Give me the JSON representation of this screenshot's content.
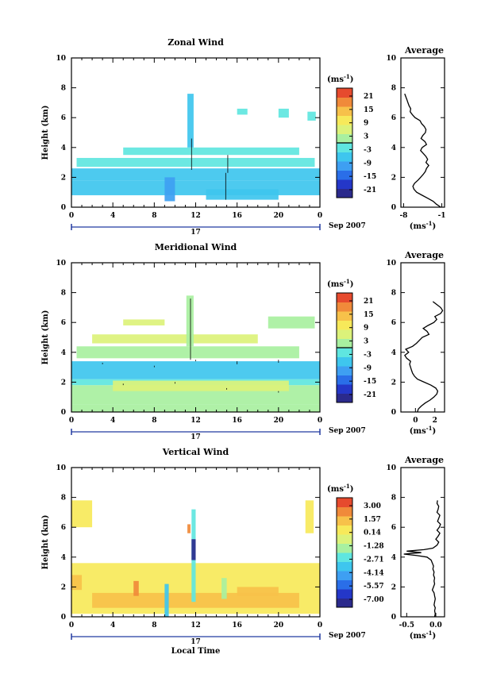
{
  "figure": {
    "x_axis_label": "Local Time",
    "unit_label": "(ms",
    "unit_exp": "-1",
    "unit_close": ")"
  },
  "chart_data": [
    {
      "type": "heatmap",
      "title": "Zonal Wind",
      "ylabel": "Height (km)",
      "xlim": [
        0,
        24
      ],
      "ylim": [
        0,
        10
      ],
      "x_ticks": [
        "0",
        "4",
        "8",
        "12",
        "16",
        "20",
        "0"
      ],
      "y_ticks": [
        "0",
        "2",
        "4",
        "6",
        "8",
        "10"
      ],
      "date_label": "17",
      "date_right_label": "Sep 2007",
      "colorbar": {
        "ticks": [
          "21",
          "15",
          "9",
          "3",
          "-3",
          "-9",
          "-15",
          "-21"
        ],
        "range": [
          -24,
          24
        ],
        "zero_line": 0
      },
      "profile": {
        "title": "Average",
        "xlim": [
          -8.5,
          -0.5
        ],
        "x_ticks": [
          "-8",
          "-1"
        ],
        "x_tick_values": [
          -8,
          -1
        ],
        "xlabel": "(ms",
        "xlabel_exp": "-1",
        "xlabel_close": ")",
        "height": [
          0.0,
          0.2,
          0.4,
          0.6,
          0.8,
          1.0,
          1.2,
          1.4,
          1.6,
          1.8,
          2.0,
          2.2,
          2.4,
          2.6,
          2.8,
          3.0,
          3.2,
          3.4,
          3.6,
          3.8,
          4.0,
          4.2,
          4.4,
          4.6,
          4.8,
          5.0,
          5.2,
          5.4,
          5.6,
          5.8,
          6.0,
          6.2,
          6.4,
          6.6,
          6.8,
          7.0,
          7.2,
          7.4,
          7.6
        ],
        "value": [
          -1.2,
          -2.0,
          -2.6,
          -3.6,
          -4.6,
          -5.6,
          -6.1,
          -6.3,
          -6.0,
          -5.4,
          -4.9,
          -4.4,
          -4.0,
          -3.8,
          -3.4,
          -3.9,
          -3.6,
          -3.9,
          -4.4,
          -4.9,
          -4.6,
          -3.8,
          -4.1,
          -4.8,
          -4.5,
          -4.0,
          -3.9,
          -4.2,
          -4.7,
          -5.0,
          -5.9,
          -6.4,
          -6.8,
          -6.7,
          -7.0,
          -7.2,
          -7.4,
          -7.6,
          -7.8
        ]
      },
      "cells": [
        [
          0,
          24,
          0.8,
          1.8,
          -8
        ],
        [
          0,
          24,
          1.8,
          2.6,
          -6
        ],
        [
          0.5,
          23.5,
          2.7,
          3.3,
          -4
        ],
        [
          5,
          22,
          3.5,
          4.0,
          -4
        ],
        [
          11.2,
          11.8,
          4.0,
          7.6,
          -5
        ],
        [
          20,
          21,
          6.0,
          6.6,
          -4
        ],
        [
          22.8,
          23.6,
          5.8,
          6.4,
          -4
        ],
        [
          16,
          17,
          6.2,
          6.6,
          -4
        ],
        [
          13,
          20,
          0.5,
          1.2,
          -7
        ],
        [
          9,
          10,
          0.4,
          2.0,
          -9
        ]
      ],
      "contours": [
        [
          14.9,
          0.5,
          2.3
        ],
        [
          15.1,
          2.3,
          3.5
        ],
        [
          11.6,
          2.5,
          4.6
        ]
      ]
    },
    {
      "type": "heatmap",
      "title": "Meridional Wind",
      "ylabel": "Height (km)",
      "xlim": [
        0,
        24
      ],
      "ylim": [
        0,
        10
      ],
      "x_ticks": [
        "0",
        "4",
        "8",
        "12",
        "16",
        "20",
        "0"
      ],
      "y_ticks": [
        "0",
        "2",
        "4",
        "6",
        "8",
        "10"
      ],
      "date_label": "17",
      "date_right_label": "Sep 2007",
      "colorbar": {
        "ticks": [
          "21",
          "15",
          "9",
          "3",
          "-3",
          "-9",
          "-15",
          "-21"
        ],
        "range": [
          -24,
          24
        ],
        "zero_line": 0
      },
      "profile": {
        "title": "Average",
        "xlim": [
          -1.5,
          3.0
        ],
        "x_ticks": [
          "0",
          "2"
        ],
        "x_tick_values": [
          0,
          2
        ],
        "xlabel": "(ms",
        "xlabel_exp": "-1",
        "xlabel_close": ")",
        "height": [
          0.0,
          0.2,
          0.4,
          0.6,
          0.8,
          1.0,
          1.2,
          1.4,
          1.6,
          1.8,
          2.0,
          2.2,
          2.4,
          2.6,
          2.8,
          3.0,
          3.2,
          3.4,
          3.6,
          3.8,
          4.0,
          4.2,
          4.4,
          4.6,
          4.8,
          5.0,
          5.2,
          5.4,
          5.6,
          5.8,
          6.0,
          6.2,
          6.4,
          6.6,
          6.8,
          7.0,
          7.2,
          7.4
        ],
        "value": [
          0.2,
          0.3,
          0.6,
          1.0,
          1.5,
          1.9,
          2.2,
          2.3,
          2.1,
          1.6,
          0.9,
          0.2,
          -0.1,
          -0.3,
          -0.4,
          -0.5,
          -0.6,
          -0.5,
          -0.9,
          -1.1,
          -0.7,
          -1.0,
          -0.3,
          0.1,
          0.4,
          0.7,
          1.4,
          1.2,
          0.8,
          1.3,
          1.9,
          2.2,
          2.0,
          2.6,
          2.8,
          2.6,
          2.2,
          1.8
        ]
      },
      "cells": [
        [
          0,
          24,
          0.5,
          1.8,
          1
        ],
        [
          0,
          24,
          1.8,
          2.2,
          -1
        ],
        [
          4,
          21,
          1.4,
          2.1,
          5
        ],
        [
          0,
          24,
          2.2,
          3.4,
          -6
        ],
        [
          0.5,
          22,
          3.6,
          4.4,
          3
        ],
        [
          2,
          18,
          4.6,
          5.2,
          4
        ],
        [
          11.1,
          11.8,
          4.4,
          7.8,
          3
        ],
        [
          19,
          23.5,
          5.6,
          6.4,
          3
        ],
        [
          5,
          9,
          5.8,
          6.2,
          4
        ],
        [
          0,
          24,
          0.0,
          0.5,
          2
        ]
      ],
      "contours": [
        [
          0,
          2.9,
          3.0
        ],
        [
          3,
          3.3,
          3.2
        ],
        [
          8,
          3.1,
          3.0
        ],
        [
          12,
          3.4,
          3.5
        ],
        [
          16,
          3.2,
          3.4
        ],
        [
          20,
          3.5,
          3.3
        ],
        [
          24,
          3.2,
          3.2
        ],
        [
          0,
          1.3,
          1.3
        ],
        [
          5,
          1.8,
          1.9
        ],
        [
          10,
          1.9,
          2.0
        ],
        [
          15,
          1.6,
          1.5
        ],
        [
          20,
          1.3,
          1.4
        ],
        [
          24,
          1.6,
          1.6
        ],
        [
          11.5,
          3.5,
          7.6
        ]
      ]
    },
    {
      "type": "heatmap",
      "title": "Vertical Wind",
      "ylabel": "Height (km)",
      "xlim": [
        0,
        24
      ],
      "ylim": [
        0,
        10
      ],
      "x_ticks": [
        "0",
        "4",
        "8",
        "12",
        "16",
        "20",
        "0"
      ],
      "y_ticks": [
        "0",
        "2",
        "4",
        "6",
        "8",
        "10"
      ],
      "date_label": "17",
      "date_right_label": "Sep 2007",
      "colorbar": {
        "ticks": [
          "3.00",
          "1.57",
          "0.14",
          "-1.28",
          "-2.71",
          "-4.14",
          "-5.57",
          "-7.00"
        ],
        "range": [
          -7.7,
          3.7
        ],
        "zero_line": null
      },
      "profile": {
        "title": "Average",
        "xlim": [
          -0.6,
          0.15
        ],
        "x_ticks": [
          "-0.5",
          "0.0"
        ],
        "x_tick_values": [
          -0.5,
          0.0
        ],
        "xlabel": "(ms",
        "xlabel_exp": "-1",
        "xlabel_close": ")",
        "height": [
          0.0,
          0.2,
          0.4,
          0.6,
          0.8,
          1.0,
          1.2,
          1.4,
          1.6,
          1.8,
          2.0,
          2.2,
          2.4,
          2.6,
          2.8,
          3.0,
          3.2,
          3.4,
          3.6,
          3.8,
          4.0,
          4.1,
          4.2,
          4.3,
          4.4,
          4.5,
          4.6,
          4.8,
          5.0,
          5.2,
          5.4,
          5.6,
          5.8,
          6.0,
          6.2,
          6.4,
          6.6,
          6.8,
          7.0,
          7.2,
          7.4,
          7.6,
          7.8
        ],
        "value": [
          -0.02,
          -0.01,
          -0.02,
          -0.01,
          -0.03,
          -0.02,
          -0.01,
          -0.02,
          -0.03,
          -0.06,
          -0.04,
          -0.02,
          -0.03,
          -0.02,
          -0.04,
          -0.03,
          -0.05,
          -0.04,
          -0.06,
          -0.08,
          -0.15,
          -0.32,
          -0.55,
          -0.25,
          -0.5,
          -0.2,
          -0.05,
          0.02,
          0.05,
          0.0,
          0.04,
          0.07,
          0.02,
          0.06,
          0.08,
          0.03,
          0.05,
          0.07,
          0.02,
          0.04,
          0.05,
          0.02,
          0.03
        ]
      },
      "cells": [
        [
          0,
          24,
          0.2,
          3.6,
          0.3
        ],
        [
          2,
          22,
          0.6,
          1.6,
          0.9
        ],
        [
          6,
          6.5,
          1.4,
          2.4,
          2.2
        ],
        [
          0,
          1,
          1.8,
          2.8,
          1.0
        ],
        [
          9.0,
          9.4,
          0.0,
          2.2,
          -3.0
        ],
        [
          11.6,
          12.0,
          1.0,
          7.2,
          -2.8
        ],
        [
          11.6,
          12.0,
          3.8,
          5.2,
          -6.8
        ],
        [
          11.2,
          11.5,
          5.6,
          6.2,
          2.6
        ],
        [
          0,
          2,
          6.0,
          7.8,
          0.6
        ],
        [
          22.6,
          23.4,
          5.6,
          7.8,
          0.6
        ],
        [
          16,
          20,
          1.4,
          2.0,
          1.2
        ],
        [
          14.5,
          15,
          1.2,
          2.6,
          -1.5
        ]
      ],
      "contours": []
    }
  ]
}
